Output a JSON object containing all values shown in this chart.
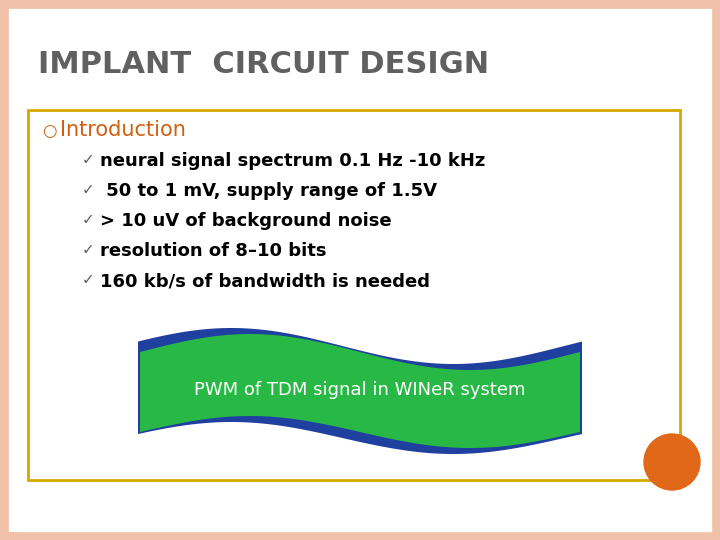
{
  "title": "IMPLANT  CIRCUIT DESIGN",
  "title_color": "#606060",
  "title_fontsize": 22,
  "title_weight": "bold",
  "background_color": "#ffffff",
  "slide_border_color": "#f0c0a8",
  "content_box_border_color": "#d4a800",
  "bullet_main": "Introduction",
  "bullet_main_color": "#d06010",
  "bullet_main_fontsize": 15,
  "check_color": "#606060",
  "bullet_items": [
    "neural signal spectrum 0.1 Hz -10 kHz",
    " 50 to 1 mV, supply range of 1.5V",
    "> 10 uV of background noise",
    "resolution of 8–10 bits",
    "160 kb/s of bandwidth is needed"
  ],
  "bullet_fontsize": 13,
  "bullet_color": "#000000",
  "banner_text": "PWM of TDM signal in WINeR system",
  "banner_text_color": "#ffffff",
  "banner_green": "#28b845",
  "banner_blue": "#2040a0",
  "orange_circle_color": "#e06818",
  "checkmark": "✓"
}
